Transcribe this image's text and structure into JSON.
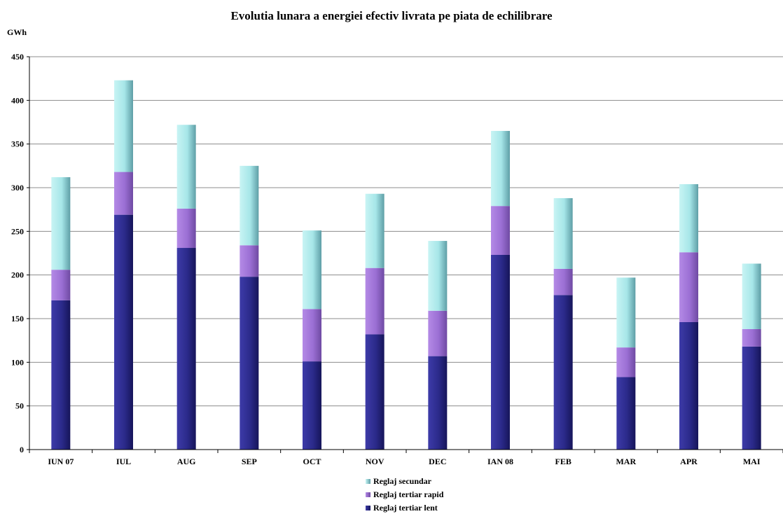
{
  "chart_data": {
    "type": "bar",
    "stacked": true,
    "title": "Evolutia lunara a energiei efectiv livrata pe piata de echilibrare",
    "ylabel": "GWh",
    "xlabel": "",
    "ylim": [
      0,
      450
    ],
    "yticks": [
      0,
      50,
      100,
      150,
      200,
      250,
      300,
      350,
      400,
      450
    ],
    "grid": true,
    "legend_position": "bottom",
    "categories": [
      "IUN 07",
      "IUL",
      "AUG",
      "SEP",
      "OCT",
      "NOV",
      "DEC",
      "IAN 08",
      "FEB",
      "MAR",
      "APR",
      "MAI"
    ],
    "series": [
      {
        "name": "Reglaj tertiar lent",
        "color": "#2b2a8a",
        "values": [
          171,
          269,
          231,
          198,
          101,
          132,
          107,
          223,
          177,
          83,
          146,
          118
        ]
      },
      {
        "name": "Reglaj tertiar rapid",
        "color": "#9b6fd4",
        "values": [
          35,
          49,
          45,
          36,
          60,
          76,
          52,
          56,
          30,
          34,
          80,
          20
        ]
      },
      {
        "name": "Reglaj secundar",
        "color": "#a6e6e8",
        "values": [
          106,
          105,
          96,
          91,
          90,
          85,
          80,
          86,
          81,
          80,
          78,
          75
        ]
      }
    ]
  }
}
